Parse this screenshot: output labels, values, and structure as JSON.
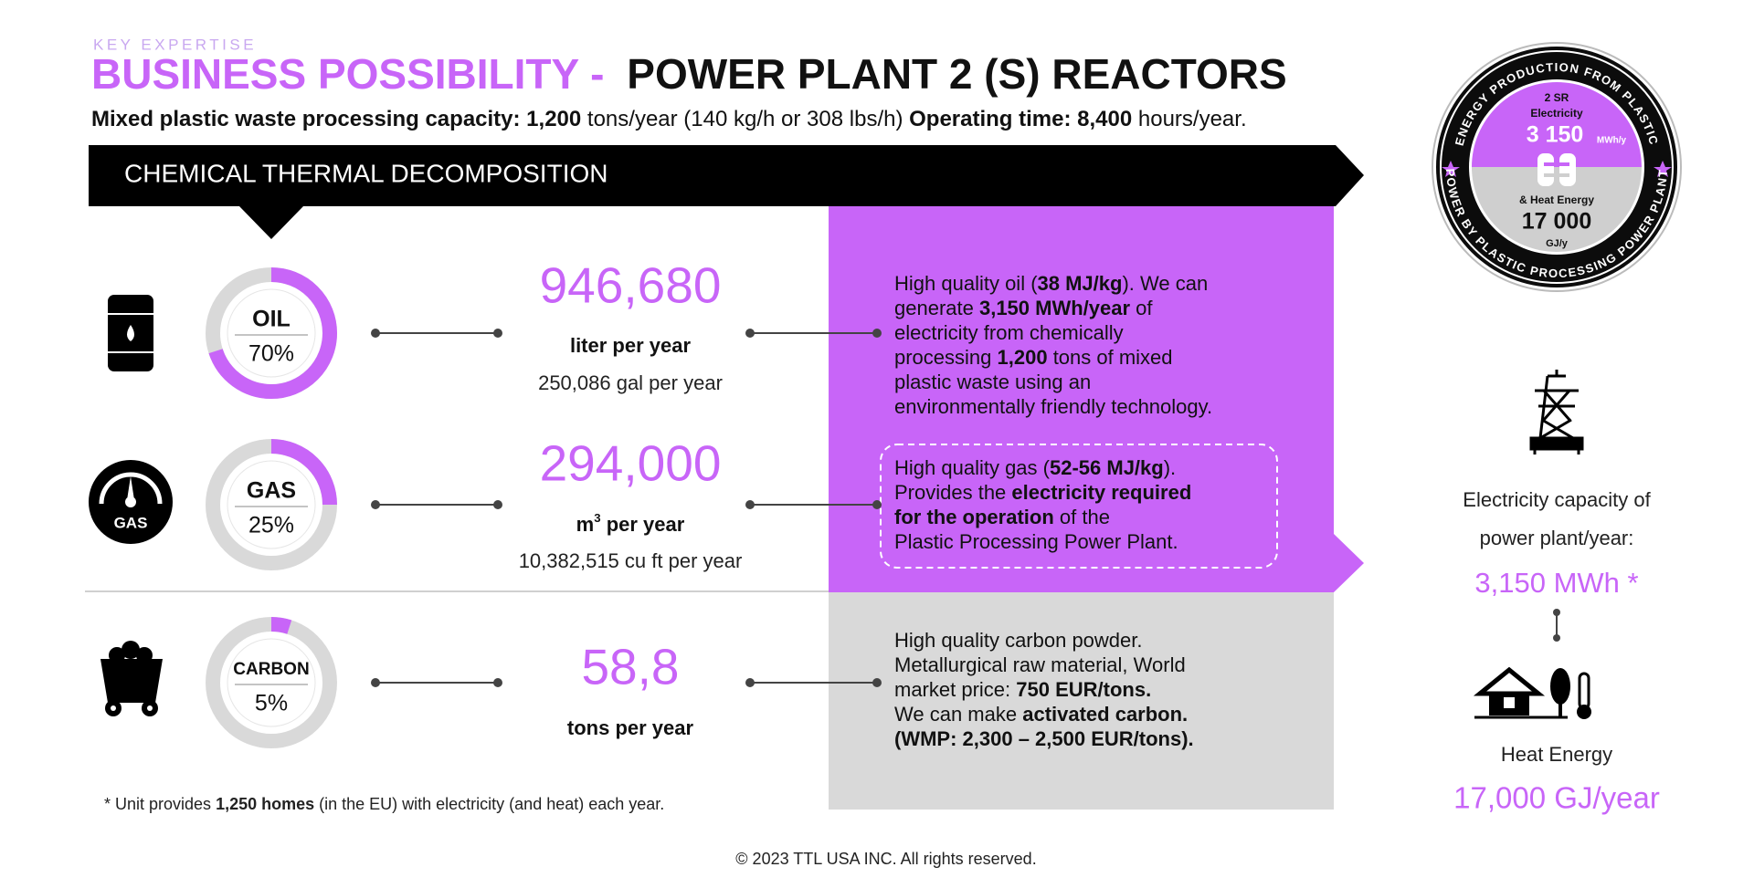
{
  "header": {
    "eyebrow": "KEY EXPERTISE",
    "title_accent": "BUSINESS POSSIBILITY -",
    "title": "POWER PLANT 2 (S) REACTORS",
    "subtitle": [
      {
        "text": "Mixed plastic waste processing capacity: 1,200",
        "bold": true
      },
      {
        "text": " tons/year (140 kg/h or 308 lbs/h) "
      },
      {
        "text": "Operating time: 8,400",
        "bold": true
      },
      {
        "text": " hours/year."
      }
    ]
  },
  "banner": "CHEMICAL THERMAL DECOMPOSITION",
  "products": [
    {
      "name": "OIL",
      "share": 70,
      "share_label": "70%",
      "amount": "946,680",
      "unit": [
        {
          "text": "liter per year"
        }
      ],
      "alt_amount": "250,086 gal per year",
      "description": [
        [
          {
            "text": "High quality oil ("
          },
          {
            "text": "38 MJ/kg",
            "bold": true
          },
          {
            "text": "). We can"
          }
        ],
        [
          {
            "text": "generate "
          },
          {
            "text": "3,150 MWh/year",
            "bold": true
          },
          {
            "text": " of"
          }
        ],
        [
          {
            "text": "electricity from chemically"
          }
        ],
        [
          {
            "text": "processing "
          },
          {
            "text": "1,200",
            "bold": true
          },
          {
            "text": " tons of mixed"
          }
        ],
        [
          {
            "text": "plastic waste using an"
          }
        ],
        [
          {
            "text": "environmentally friendly technology."
          }
        ]
      ]
    },
    {
      "name": "GAS",
      "share": 25,
      "share_label": "25%",
      "icon_label": "GAS",
      "amount": "294,000",
      "unit": [
        {
          "text": "m"
        },
        {
          "text": "3",
          "sup": true
        },
        {
          "text": " per year"
        }
      ],
      "alt_amount": "10,382,515 cu ft per year",
      "description": [
        [
          {
            "text": "High quality gas ("
          },
          {
            "text": "52-56 MJ/kg",
            "bold": true
          },
          {
            "text": ")."
          }
        ],
        [
          {
            "text": "Provides the "
          },
          {
            "text": "electricity required",
            "bold": true
          }
        ],
        [
          {
            "text": "for the operation",
            "bold": true
          },
          {
            "text": " of the"
          }
        ],
        [
          {
            "text": "Plastic Processing Power Plant."
          }
        ]
      ]
    },
    {
      "name": "CARBON",
      "share": 5,
      "share_label": "5%",
      "amount": "58,8",
      "unit": [
        {
          "text": "tons per year"
        }
      ],
      "description": [
        [
          {
            "text": "High quality carbon powder."
          }
        ],
        [
          {
            "text": "Metallurgical raw material, World"
          }
        ],
        [
          {
            "text": "market price: "
          },
          {
            "text": "750 EUR/tons.",
            "bold": true
          }
        ],
        [
          {
            "text": "We can make "
          },
          {
            "text": "activated carbon.",
            "bold": true
          }
        ],
        [
          {
            "text": "(WMP: 2,300 – 2,500 EUR/tons).",
            "bold": true
          }
        ]
      ]
    }
  ],
  "footnote": [
    {
      "text": "* Unit provides "
    },
    {
      "text": "1,250 homes",
      "bold": true
    },
    {
      "text": " (in the EU) with electricity (and heat) each year."
    }
  ],
  "copyright": "© 2023 TTL USA INC. All rights reserved.",
  "badge": {
    "ring_top": "ENERGY PRODUCTION FROM PLASTIC",
    "ring_bottom": "POWER BY PLASTIC PROCESSING POWER PLANT",
    "reactors": "2 SR",
    "electricity_label": "Electricity",
    "electricity": "3 150",
    "electricity_unit": "MWh/y",
    "heat_label": "& Heat Energy",
    "heat": "17 000",
    "heat_unit": "GJ/y"
  },
  "summary": {
    "electricity_caption": [
      "Electricity capacity of",
      "power plant/year:"
    ],
    "electricity": "3,150 MWh *",
    "heat_caption": "Heat Energy",
    "heat": "17,000 GJ/year"
  }
}
